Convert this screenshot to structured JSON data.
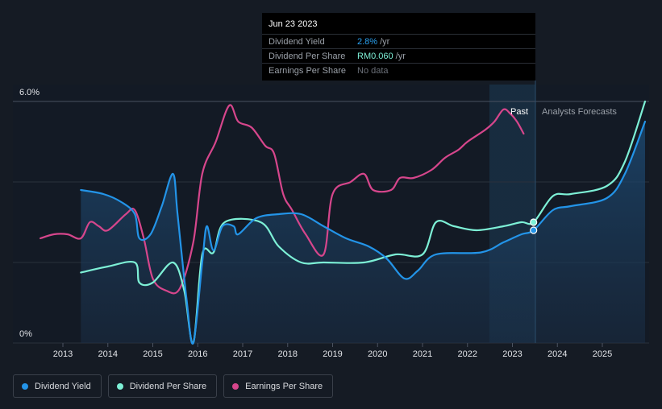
{
  "tooltip": {
    "date": "Jun 23 2023",
    "rows": [
      {
        "label": "Dividend Yield",
        "value": "2.8%",
        "unit": "/yr",
        "color": "#2aa1f0"
      },
      {
        "label": "Dividend Per Share",
        "value": "RM0.060",
        "unit": "/yr",
        "color": "#7df0d6"
      },
      {
        "label": "Earnings Per Share",
        "value": "No data",
        "unit": "",
        "color": "#6b7079"
      }
    ]
  },
  "regions": {
    "past": "Past",
    "forecast": "Analysts Forecasts"
  },
  "legend": [
    {
      "label": "Dividend Yield",
      "color": "#2394e8"
    },
    {
      "label": "Dividend Per Share",
      "color": "#7df0d6"
    },
    {
      "label": "Earnings Per Share",
      "color": "#d6468c"
    }
  ],
  "chart_data": {
    "type": "line",
    "y_tick_labels": [
      "6.0%",
      "0%"
    ],
    "x_tick_labels": [
      "2013",
      "2014",
      "2015",
      "2016",
      "2017",
      "2018",
      "2019",
      "2020",
      "2021",
      "2022",
      "2023",
      "2024",
      "2025"
    ],
    "ylim": [
      0,
      6.0
    ],
    "grid": true,
    "past_forecast_split": 2023.47,
    "series": [
      {
        "name": "Dividend Yield",
        "color": "#2394e8",
        "unit": "%",
        "points": [
          [
            2013.4,
            3.8
          ],
          [
            2013.9,
            3.7
          ],
          [
            2014.3,
            3.5
          ],
          [
            2014.6,
            3.2
          ],
          [
            2014.7,
            2.6
          ],
          [
            2014.95,
            2.7
          ],
          [
            2015.2,
            3.4
          ],
          [
            2015.45,
            4.2
          ],
          [
            2015.55,
            3.2
          ],
          [
            2015.75,
            1.1
          ],
          [
            2015.9,
            0.0
          ],
          [
            2016.1,
            2.0
          ],
          [
            2016.2,
            2.9
          ],
          [
            2016.35,
            2.3
          ],
          [
            2016.55,
            2.9
          ],
          [
            2016.8,
            2.9
          ],
          [
            2016.9,
            2.7
          ],
          [
            2017.3,
            3.1
          ],
          [
            2017.8,
            3.2
          ],
          [
            2018.3,
            3.2
          ],
          [
            2018.8,
            2.9
          ],
          [
            2019.3,
            2.6
          ],
          [
            2019.8,
            2.4
          ],
          [
            2020.2,
            2.1
          ],
          [
            2020.6,
            1.6
          ],
          [
            2020.9,
            1.8
          ],
          [
            2021.3,
            2.2
          ],
          [
            2022.3,
            2.25
          ],
          [
            2022.8,
            2.5
          ],
          [
            2023.2,
            2.7
          ],
          [
            2023.47,
            2.8
          ],
          [
            2023.9,
            3.3
          ],
          [
            2024.3,
            3.4
          ],
          [
            2025.1,
            3.6
          ],
          [
            2025.5,
            4.2
          ],
          [
            2025.95,
            5.5
          ]
        ]
      },
      {
        "name": "Dividend Per Share",
        "color": "#7df0d6",
        "unit": "RM",
        "points": [
          [
            2013.4,
            1.75
          ],
          [
            2014.0,
            1.9
          ],
          [
            2014.6,
            2.0
          ],
          [
            2014.7,
            1.5
          ],
          [
            2015.0,
            1.5
          ],
          [
            2015.45,
            2.0
          ],
          [
            2015.7,
            1.3
          ],
          [
            2015.9,
            0.0
          ],
          [
            2016.1,
            2.2
          ],
          [
            2016.35,
            2.25
          ],
          [
            2016.6,
            3.0
          ],
          [
            2017.4,
            3.0
          ],
          [
            2017.8,
            2.4
          ],
          [
            2018.3,
            2.0
          ],
          [
            2018.8,
            2.0
          ],
          [
            2019.7,
            2.0
          ],
          [
            2020.4,
            2.2
          ],
          [
            2021.0,
            2.2
          ],
          [
            2021.3,
            3.0
          ],
          [
            2021.7,
            2.9
          ],
          [
            2022.2,
            2.8
          ],
          [
            2022.8,
            2.9
          ],
          [
            2023.2,
            3.0
          ],
          [
            2023.47,
            3.0
          ],
          [
            2023.9,
            3.65
          ],
          [
            2024.3,
            3.7
          ],
          [
            2025.1,
            3.9
          ],
          [
            2025.5,
            4.5
          ],
          [
            2025.95,
            6.0
          ]
        ]
      },
      {
        "name": "Earnings Per Share",
        "color": "#d6468c",
        "unit": "RM",
        "points": [
          [
            2012.5,
            2.6
          ],
          [
            2012.8,
            2.7
          ],
          [
            2013.1,
            2.7
          ],
          [
            2013.4,
            2.6
          ],
          [
            2013.6,
            3.0
          ],
          [
            2013.8,
            2.9
          ],
          [
            2014.0,
            2.8
          ],
          [
            2014.4,
            3.2
          ],
          [
            2014.6,
            3.3
          ],
          [
            2014.8,
            2.6
          ],
          [
            2015.0,
            1.6
          ],
          [
            2015.3,
            1.3
          ],
          [
            2015.6,
            1.35
          ],
          [
            2015.9,
            2.5
          ],
          [
            2016.1,
            4.2
          ],
          [
            2016.4,
            5.0
          ],
          [
            2016.7,
            5.9
          ],
          [
            2016.9,
            5.5
          ],
          [
            2017.2,
            5.35
          ],
          [
            2017.5,
            4.9
          ],
          [
            2017.7,
            4.7
          ],
          [
            2017.9,
            3.7
          ],
          [
            2018.1,
            3.3
          ],
          [
            2018.4,
            2.7
          ],
          [
            2018.8,
            2.2
          ],
          [
            2019.0,
            3.7
          ],
          [
            2019.4,
            4.0
          ],
          [
            2019.7,
            4.2
          ],
          [
            2019.9,
            3.8
          ],
          [
            2020.3,
            3.8
          ],
          [
            2020.5,
            4.1
          ],
          [
            2020.8,
            4.1
          ],
          [
            2021.2,
            4.3
          ],
          [
            2021.5,
            4.6
          ],
          [
            2021.8,
            4.8
          ],
          [
            2022.0,
            5.0
          ],
          [
            2022.4,
            5.3
          ],
          [
            2022.6,
            5.5
          ],
          [
            2022.8,
            5.8
          ],
          [
            2022.95,
            5.7
          ],
          [
            2023.1,
            5.5
          ],
          [
            2023.25,
            5.2
          ]
        ]
      }
    ]
  }
}
